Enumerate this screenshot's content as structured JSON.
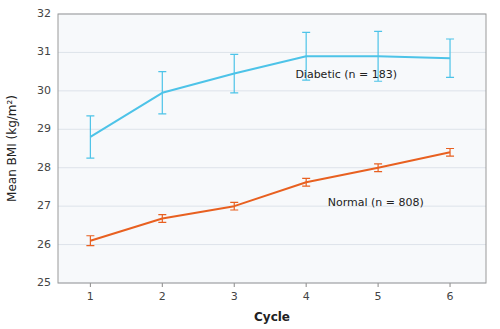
{
  "chart_data": {
    "type": "line",
    "xlabel": "Cycle",
    "ylabel": "Mean BMI (kg/m²)",
    "x": [
      1,
      2,
      3,
      4,
      5,
      6
    ],
    "series": [
      {
        "color": "#4DC3E8",
        "values": [
          28.8,
          29.95,
          30.45,
          30.9,
          30.9,
          30.85
        ],
        "errors": [
          0.55,
          0.55,
          0.5,
          0.62,
          0.65,
          0.5
        ]
      },
      {
        "color": "#E86020",
        "values": [
          26.1,
          26.68,
          27.0,
          27.62,
          28.0,
          28.4
        ],
        "errors": [
          0.13,
          0.1,
          0.1,
          0.1,
          0.1,
          0.1
        ]
      }
    ],
    "annotations": [
      {
        "text": "Diabetic (n = 183)",
        "x": 3.85,
        "y": 30.55
      },
      {
        "text": "Normal (n = 808)",
        "x": 4.3,
        "y": 27.22
      }
    ],
    "xlim": [
      0.55,
      6.5
    ],
    "xticks": [
      1,
      2,
      3,
      4,
      5,
      6
    ],
    "ylim": [
      25,
      32
    ],
    "yticks": [
      25,
      26,
      27,
      28,
      29,
      30,
      31,
      32
    ],
    "grid": true
  }
}
